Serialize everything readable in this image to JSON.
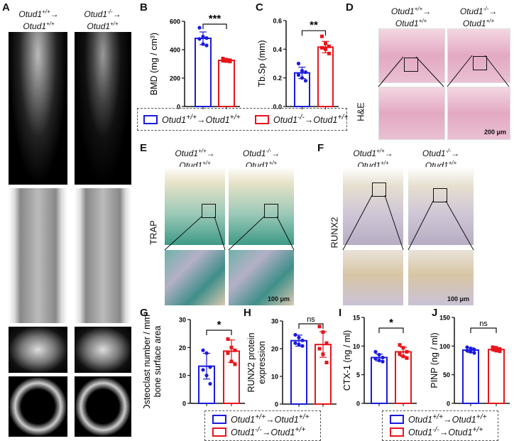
{
  "panels": {
    "A": "A",
    "B": "B",
    "C": "C",
    "D": "D",
    "E": "E",
    "F": "F",
    "G": "G",
    "H": "H",
    "I": "I",
    "J": "J"
  },
  "groups": {
    "wt": {
      "label": "Otud1",
      "sup1": "+/+",
      "arrow": "→",
      "label2": "Otud1",
      "sup2": "+/+",
      "color": "#1a1adf"
    },
    "ko": {
      "label": "Otud1",
      "sup1": "-/-",
      "arrow": "→",
      "label2": "Otud1",
      "sup2": "+/+",
      "color": "#e8151b"
    }
  },
  "stain_labels": {
    "D": "H&E",
    "E": "TRAP",
    "F": "RUNX2"
  },
  "scale_bars": {
    "D": "200 μm",
    "E": "100 μm",
    "F": "100 μm"
  },
  "chart_data": [
    {
      "id": "B",
      "type": "bar",
      "ylabel": "BMD (mg / cm³)",
      "ylim": [
        0,
        600
      ],
      "yticks": [
        "0",
        "200",
        "400",
        "600"
      ],
      "significance": "***",
      "series": [
        {
          "group": "wt",
          "mean": 480,
          "sd": 45,
          "points": [
            555,
            492,
            482,
            476,
            440,
            430
          ]
        },
        {
          "group": "ko",
          "mean": 325,
          "sd": 10,
          "points": [
            338,
            330,
            326,
            322,
            320,
            317
          ]
        }
      ]
    },
    {
      "id": "C",
      "type": "bar",
      "ylabel": "Tb.Sp (mm)",
      "ylim": [
        0,
        0.6
      ],
      "yticks": [
        "0.0",
        "0.2",
        "0.4",
        "0.6"
      ],
      "significance": "**",
      "series": [
        {
          "group": "wt",
          "mean": 0.235,
          "sd": 0.04,
          "points": [
            0.3,
            0.25,
            0.24,
            0.22,
            0.2,
            0.18
          ]
        },
        {
          "group": "ko",
          "mean": 0.415,
          "sd": 0.04,
          "points": [
            0.49,
            0.44,
            0.42,
            0.41,
            0.4,
            0.37
          ]
        }
      ]
    },
    {
      "id": "G",
      "type": "bar",
      "ylabel": "Osteoclast number / mm²",
      "ylabel2": "bone surface area",
      "ylim": [
        0,
        30
      ],
      "yticks": [
        "0",
        "10",
        "20",
        "30"
      ],
      "significance": "*",
      "series": [
        {
          "group": "wt",
          "mean": 13.3,
          "sd": 4.6,
          "points": [
            19,
            18,
            13,
            12,
            10,
            7
          ]
        },
        {
          "group": "ko",
          "mean": 18.7,
          "sd": 4,
          "points": [
            23,
            20,
            19,
            18,
            15,
            14
          ]
        }
      ]
    },
    {
      "id": "H",
      "type": "bar",
      "ylabel": "RUNX2 protein",
      "ylabel2": "expression",
      "ylim": [
        0,
        30
      ],
      "yticks": [
        "0",
        "10",
        "20",
        "30"
      ],
      "significance": "ns",
      "series": [
        {
          "group": "wt",
          "mean": 22.9,
          "sd": 2,
          "points": [
            25,
            24,
            23,
            22,
            21.5,
            21
          ]
        },
        {
          "group": "ko",
          "mean": 21.5,
          "sd": 4.6,
          "points": [
            28,
            26,
            22,
            20,
            18,
            15
          ]
        }
      ]
    },
    {
      "id": "I",
      "type": "bar",
      "ylabel": "CTX-1 (ng / ml)",
      "ylim": [
        0,
        15
      ],
      "yticks": [
        "0",
        "5",
        "10",
        "15"
      ],
      "significance": "*",
      "series": [
        {
          "group": "wt",
          "mean": 8.0,
          "sd": 0.6,
          "points": [
            9,
            8.5,
            8,
            7.8,
            7.5,
            7.3
          ]
        },
        {
          "group": "ko",
          "mean": 9.0,
          "sd": 0.8,
          "points": [
            10.2,
            9.7,
            9,
            8.6,
            8.2,
            7.9
          ]
        }
      ]
    },
    {
      "id": "J",
      "type": "bar",
      "ylabel": "PINP (ng / ml)",
      "ylim": [
        0,
        150
      ],
      "yticks": [
        "0",
        "50",
        "100",
        "150"
      ],
      "significance": "ns",
      "series": [
        {
          "group": "wt",
          "mean": 93,
          "sd": 4,
          "points": [
            98,
            96,
            94,
            92,
            90,
            88
          ]
        },
        {
          "group": "ko",
          "mean": 94,
          "sd": 3,
          "points": [
            98,
            97,
            95,
            94,
            92,
            91
          ]
        }
      ]
    }
  ]
}
